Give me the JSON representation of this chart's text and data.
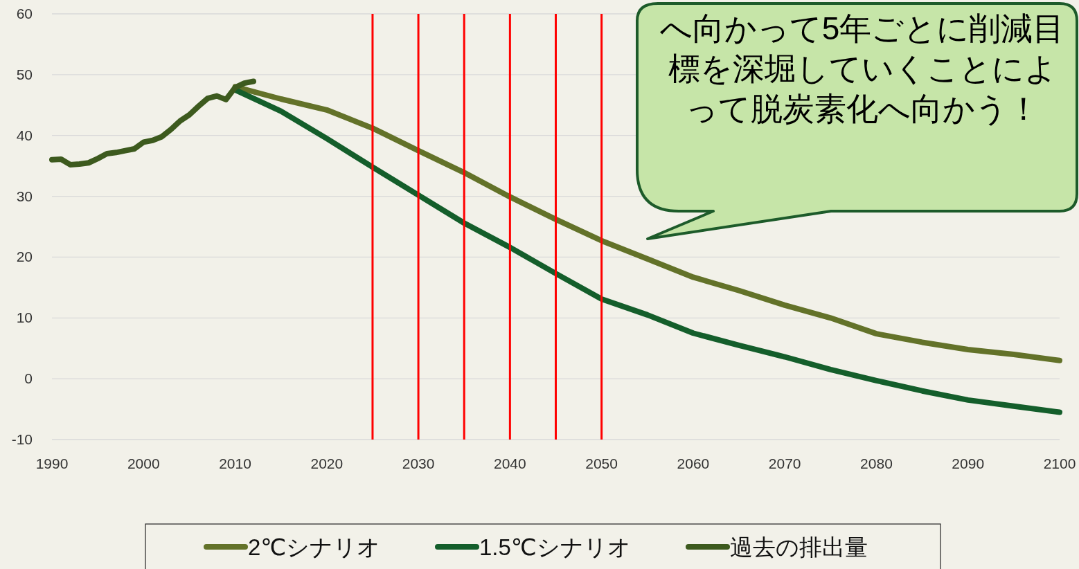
{
  "chart_data": {
    "type": "line",
    "xlim": [
      1990,
      2100
    ],
    "xticks": [
      1990,
      2000,
      2010,
      2020,
      2030,
      2040,
      2050,
      2060,
      2070,
      2080,
      2090,
      2100
    ],
    "ylim": [
      -10,
      60
    ],
    "yticks": [
      -10,
      0,
      10,
      20,
      30,
      40,
      50,
      60
    ],
    "grid": "y",
    "legend": "bottom",
    "series": [
      {
        "name": "2℃シナリオ",
        "color": "#637229",
        "x": [
          2010,
          2015,
          2020,
          2025,
          2030,
          2035,
          2040,
          2045,
          2050,
          2055,
          2060,
          2065,
          2070,
          2075,
          2080,
          2085,
          2090,
          2095,
          2100
        ],
        "values": [
          48,
          46,
          44.2,
          41.2,
          37.5,
          33.9,
          29.9,
          26.2,
          22.7,
          19.7,
          16.7,
          14.5,
          12.1,
          10,
          7.4,
          6,
          4.8,
          4,
          3
        ]
      },
      {
        "name": "1.5℃シナリオ",
        "color": "#145e2b",
        "x": [
          2010,
          2015,
          2020,
          2025,
          2030,
          2035,
          2040,
          2045,
          2050,
          2055,
          2060,
          2065,
          2070,
          2075,
          2080,
          2085,
          2090,
          2095,
          2100
        ],
        "values": [
          47.5,
          44,
          39.5,
          34.8,
          30.2,
          25.6,
          21.6,
          17.3,
          13.1,
          10.5,
          7.5,
          5.5,
          3.6,
          1.5,
          -0.3,
          -2,
          -3.5,
          -4.5,
          -5.5
        ]
      },
      {
        "name": "過去の排出量",
        "color": "#3d5a1e",
        "x": [
          1990,
          1991,
          1992,
          1993,
          1994,
          1995,
          1996,
          1997,
          1998,
          1999,
          2000,
          2001,
          2002,
          2003,
          2004,
          2005,
          2006,
          2007,
          2008,
          2009,
          2010,
          2011,
          2012
        ],
        "values": [
          36,
          36.1,
          35.2,
          35.3,
          35.5,
          36.2,
          37,
          37.2,
          37.5,
          37.8,
          38.9,
          39.2,
          39.8,
          41,
          42.4,
          43.4,
          44.8,
          46.1,
          46.5,
          45.9,
          47.9,
          48.6,
          48.9
        ]
      }
    ],
    "ref_lines": [
      {
        "axis": "x",
        "value": 2025,
        "color": "#ff0000"
      },
      {
        "axis": "x",
        "value": 2030,
        "color": "#ff0000"
      },
      {
        "axis": "x",
        "value": 2035,
        "color": "#ff0000"
      },
      {
        "axis": "x",
        "value": 2040,
        "color": "#ff0000"
      },
      {
        "axis": "x",
        "value": 2045,
        "color": "#ff0000"
      },
      {
        "axis": "x",
        "value": 2050,
        "color": "#ff0000"
      }
    ],
    "annotations": [
      "へ向かって5年ごとに削減目標を深堀していくことによって脱炭素化へ向かう！"
    ]
  }
}
